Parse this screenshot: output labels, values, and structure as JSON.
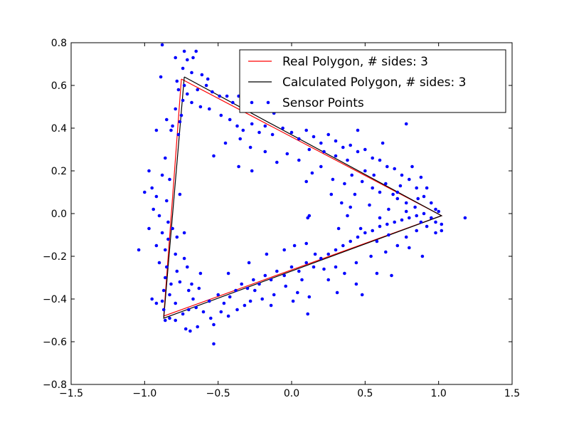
{
  "chart_data": {
    "type": "scatter",
    "title": "",
    "xlabel": "",
    "ylabel": "",
    "xlim": [
      -1.5,
      1.5
    ],
    "ylim": [
      -0.8,
      0.8
    ],
    "x_ticks": [
      -1.5,
      -1.0,
      -0.5,
      0.0,
      0.5,
      1.0,
      1.5
    ],
    "x_tick_labels": [
      "−1.5",
      "−1.0",
      "−0.5",
      "0.0",
      "0.5",
      "1.0",
      "1.5"
    ],
    "y_ticks": [
      -0.8,
      -0.6,
      -0.4,
      -0.2,
      0.0,
      0.2,
      0.4,
      0.6,
      0.8
    ],
    "y_tick_labels": [
      "−0.8",
      "−0.6",
      "−0.4",
      "−0.2",
      "0.0",
      "0.2",
      "0.4",
      "0.6",
      "0.8"
    ],
    "grid": false,
    "legend_position": "top-right",
    "series": [
      {
        "name": "Real Polygon, # sides: 3",
        "kind": "line",
        "color": "#ff0000",
        "points": [
          [
            -0.75,
            0.63
          ],
          [
            1.02,
            -0.01
          ],
          [
            -0.87,
            -0.48
          ],
          [
            -0.75,
            0.63
          ]
        ]
      },
      {
        "name": "Calculated Polygon, # sides: 3",
        "kind": "line",
        "color": "#000000",
        "points": [
          [
            -0.73,
            0.64
          ],
          [
            1.02,
            -0.01
          ],
          [
            -0.87,
            -0.49
          ],
          [
            -0.73,
            0.64
          ]
        ]
      },
      {
        "name": "Sensor Points",
        "kind": "scatter",
        "color": "#0000ff",
        "points": [
          [
            -0.88,
            0.79
          ],
          [
            -0.73,
            0.76
          ],
          [
            -0.65,
            0.76
          ],
          [
            -0.79,
            0.73
          ],
          [
            -0.71,
            0.72
          ],
          [
            -0.67,
            0.73
          ],
          [
            -0.74,
            0.68
          ],
          [
            -0.68,
            0.66
          ],
          [
            -0.61,
            0.65
          ],
          [
            -0.57,
            0.63
          ],
          [
            -0.89,
            0.64
          ],
          [
            -0.78,
            0.62
          ],
          [
            -0.73,
            0.6
          ],
          [
            -0.64,
            0.58
          ],
          [
            -0.58,
            0.6
          ],
          [
            -0.54,
            0.57
          ],
          [
            -0.49,
            0.55
          ],
          [
            -0.44,
            0.55
          ],
          [
            -0.4,
            0.52
          ],
          [
            -0.36,
            0.55
          ],
          [
            -0.31,
            0.5
          ],
          [
            -0.25,
            0.49
          ],
          [
            -0.19,
            0.5
          ],
          [
            -0.12,
            0.47
          ],
          [
            -0.77,
            0.58
          ],
          [
            -0.71,
            0.56
          ],
          [
            -0.74,
            0.53
          ],
          [
            -0.68,
            0.52
          ],
          [
            -0.62,
            0.5
          ],
          [
            -0.79,
            0.49
          ],
          [
            -0.75,
            0.46
          ],
          [
            -0.85,
            0.44
          ],
          [
            -0.81,
            0.41
          ],
          [
            -0.76,
            0.43
          ],
          [
            -0.92,
            0.39
          ],
          [
            -0.82,
            0.39
          ],
          [
            -0.77,
            0.37
          ],
          [
            -0.56,
            0.49
          ],
          [
            -0.48,
            0.46
          ],
          [
            -0.42,
            0.44
          ],
          [
            -0.37,
            0.41
          ],
          [
            -0.33,
            0.39
          ],
          [
            -0.27,
            0.42
          ],
          [
            -0.22,
            0.38
          ],
          [
            -0.18,
            0.41
          ],
          [
            -0.13,
            0.37
          ],
          [
            -0.06,
            0.4
          ],
          [
            0.0,
            0.38
          ],
          [
            0.05,
            0.35
          ],
          [
            0.1,
            0.39
          ],
          [
            0.15,
            0.36
          ],
          [
            0.2,
            0.33
          ],
          [
            0.25,
            0.37
          ],
          [
            0.3,
            0.34
          ],
          [
            0.35,
            0.31
          ],
          [
            0.4,
            0.32
          ],
          [
            0.45,
            0.29
          ],
          [
            0.5,
            0.3
          ],
          [
            0.55,
            0.26
          ],
          [
            0.6,
            0.25
          ],
          [
            0.65,
            0.22
          ],
          [
            0.7,
            0.21
          ],
          [
            0.75,
            0.18
          ],
          [
            0.8,
            0.16
          ],
          [
            0.85,
            0.12
          ],
          [
            0.9,
            0.08
          ],
          [
            0.95,
            0.05
          ],
          [
            0.98,
            0.02
          ],
          [
            0.78,
            0.42
          ],
          [
            0.62,
            0.33
          ],
          [
            0.45,
            0.39
          ],
          [
            0.38,
            0.25
          ],
          [
            0.3,
            0.27
          ],
          [
            0.22,
            0.29
          ],
          [
            0.12,
            0.3
          ],
          [
            0.05,
            0.25
          ],
          [
            -0.03,
            0.28
          ],
          [
            -0.1,
            0.24
          ],
          [
            -0.18,
            0.29
          ],
          [
            -0.28,
            0.31
          ],
          [
            -0.35,
            0.35
          ],
          [
            -0.45,
            0.33
          ],
          [
            -0.53,
            0.27
          ],
          [
            -0.27,
            0.2
          ],
          [
            -0.36,
            0.22
          ],
          [
            0.5,
            0.2
          ],
          [
            0.56,
            0.18
          ],
          [
            0.64,
            0.14
          ],
          [
            0.72,
            0.1
          ],
          [
            0.78,
            0.05
          ],
          [
            0.84,
            0.03
          ],
          [
            0.9,
            0.0
          ],
          [
            0.95,
            -0.02
          ],
          [
            0.98,
            -0.04
          ],
          [
            1.02,
            -0.05
          ],
          [
            1.18,
            -0.02
          ],
          [
            1.0,
            0.01
          ],
          [
            0.92,
            0.12
          ],
          [
            0.88,
            0.17
          ],
          [
            0.82,
            0.22
          ],
          [
            0.86,
            0.07
          ],
          [
            0.74,
            0.13
          ],
          [
            0.69,
            0.09
          ],
          [
            0.6,
            0.1
          ],
          [
            0.55,
            0.12
          ],
          [
            0.48,
            0.15
          ],
          [
            0.41,
            0.18
          ],
          [
            0.36,
            0.14
          ],
          [
            0.43,
            0.09
          ],
          [
            0.28,
            0.16
          ],
          [
            0.2,
            0.22
          ],
          [
            0.14,
            0.19
          ],
          [
            0.1,
            0.15
          ],
          [
            0.34,
            0.05
          ],
          [
            0.38,
            -0.01
          ],
          [
            0.4,
            0.03
          ],
          [
            0.11,
            -0.02
          ],
          [
            -0.97,
            0.2
          ],
          [
            -0.95,
            0.12
          ],
          [
            -0.86,
            0.26
          ],
          [
            -0.88,
            0.18
          ],
          [
            -0.83,
            0.16
          ],
          [
            -0.92,
            0.08
          ],
          [
            -0.85,
            0.06
          ],
          [
            -0.94,
            0.02
          ],
          [
            -0.9,
            -0.01
          ],
          [
            -0.84,
            -0.04
          ],
          [
            -1.0,
            0.1
          ],
          [
            -0.97,
            -0.07
          ],
          [
            -0.88,
            -0.09
          ],
          [
            -0.81,
            -0.07
          ],
          [
            -0.84,
            -0.12
          ],
          [
            -0.78,
            -0.11
          ],
          [
            -0.76,
            0.09
          ],
          [
            -0.73,
            -0.09
          ],
          [
            -0.86,
            -0.17
          ],
          [
            -0.79,
            -0.19
          ],
          [
            -0.73,
            -0.21
          ],
          [
            -0.92,
            -0.15
          ],
          [
            -1.04,
            -0.17
          ],
          [
            -0.9,
            -0.23
          ],
          [
            -0.85,
            -0.25
          ],
          [
            -0.78,
            -0.27
          ],
          [
            -0.71,
            -0.25
          ],
          [
            -0.86,
            -0.3
          ],
          [
            -0.82,
            -0.33
          ],
          [
            -0.76,
            -0.32
          ],
          [
            -0.68,
            -0.33
          ],
          [
            -0.62,
            -0.28
          ],
          [
            -0.87,
            -0.36
          ],
          [
            -0.83,
            -0.38
          ],
          [
            -0.88,
            -0.41
          ],
          [
            -0.79,
            -0.42
          ],
          [
            -0.7,
            -0.36
          ],
          [
            -0.67,
            -0.4
          ],
          [
            -0.63,
            -0.35
          ],
          [
            -0.95,
            -0.4
          ],
          [
            -0.92,
            -0.42
          ],
          [
            -0.87,
            -0.45
          ],
          [
            -0.86,
            -0.5
          ],
          [
            -0.83,
            -0.49
          ],
          [
            -0.79,
            -0.5
          ],
          [
            -0.74,
            -0.47
          ],
          [
            -0.7,
            -0.45
          ],
          [
            -0.65,
            -0.44
          ],
          [
            -0.6,
            -0.46
          ],
          [
            -0.56,
            -0.41
          ],
          [
            -0.5,
            -0.38
          ],
          [
            -0.46,
            -0.42
          ],
          [
            -0.42,
            -0.39
          ],
          [
            -0.38,
            -0.36
          ],
          [
            -0.34,
            -0.33
          ],
          [
            -0.3,
            -0.35
          ],
          [
            -0.26,
            -0.31
          ],
          [
            -0.22,
            -0.33
          ],
          [
            -0.18,
            -0.29
          ],
          [
            -0.14,
            -0.31
          ],
          [
            -0.1,
            -0.27
          ],
          [
            -0.05,
            -0.29
          ],
          [
            0.0,
            -0.25
          ],
          [
            0.05,
            -0.27
          ],
          [
            0.1,
            -0.23
          ],
          [
            0.15,
            -0.25
          ],
          [
            0.2,
            -0.21
          ],
          [
            0.25,
            -0.19
          ],
          [
            0.3,
            -0.17
          ],
          [
            0.35,
            -0.15
          ],
          [
            0.4,
            -0.13
          ],
          [
            0.45,
            -0.11
          ],
          [
            0.5,
            -0.09
          ],
          [
            0.55,
            -0.08
          ],
          [
            0.6,
            -0.06
          ],
          [
            0.65,
            -0.05
          ],
          [
            0.7,
            -0.04
          ],
          [
            0.75,
            -0.03
          ],
          [
            0.8,
            -0.02
          ],
          [
            0.85,
            -0.01
          ],
          [
            -0.72,
            -0.54
          ],
          [
            -0.69,
            -0.55
          ],
          [
            -0.64,
            -0.53
          ],
          [
            -0.55,
            -0.49
          ],
          [
            -0.53,
            -0.52
          ],
          [
            -0.48,
            -0.46
          ],
          [
            -0.43,
            -0.48
          ],
          [
            -0.37,
            -0.45
          ],
          [
            -0.32,
            -0.43
          ],
          [
            -0.28,
            -0.41
          ],
          [
            -0.53,
            -0.61
          ],
          [
            -0.43,
            -0.28
          ],
          [
            -0.29,
            -0.23
          ],
          [
            -0.17,
            -0.19
          ],
          [
            -0.05,
            -0.17
          ],
          [
            0.02,
            -0.15
          ],
          [
            0.1,
            -0.14
          ],
          [
            0.16,
            -0.19
          ],
          [
            0.22,
            -0.26
          ],
          [
            0.25,
            -0.31
          ],
          [
            0.3,
            -0.25
          ],
          [
            0.36,
            -0.28
          ],
          [
            0.44,
            -0.23
          ],
          [
            0.54,
            -0.2
          ],
          [
            0.58,
            -0.13
          ],
          [
            0.66,
            -0.1
          ],
          [
            0.72,
            -0.15
          ],
          [
            0.78,
            -0.11
          ],
          [
            0.85,
            -0.08
          ],
          [
            0.92,
            -0.06
          ],
          [
            0.98,
            -0.09
          ],
          [
            0.89,
            -0.2
          ],
          [
            0.8,
            -0.16
          ],
          [
            0.68,
            -0.29
          ],
          [
            0.48,
            -0.38
          ],
          [
            0.11,
            -0.47
          ],
          [
            0.12,
            -0.39
          ],
          [
            0.04,
            -0.37
          ],
          [
            -0.04,
            -0.34
          ],
          [
            -0.12,
            -0.38
          ],
          [
            -0.2,
            -0.4
          ],
          [
            -0.25,
            -0.36
          ],
          [
            0.07,
            -0.31
          ],
          [
            0.01,
            -0.41
          ],
          [
            -0.14,
            -0.43
          ],
          [
            0.31,
            -0.37
          ],
          [
            0.44,
            -0.33
          ],
          [
            0.58,
            -0.28
          ],
          [
            0.64,
            -0.18
          ],
          [
            0.12,
            -0.01
          ],
          [
            0.32,
            -0.07
          ],
          [
            0.47,
            -0.07
          ],
          [
            0.6,
            -0.02
          ],
          [
            0.78,
            0.01
          ],
          [
            0.88,
            -0.04
          ],
          [
            1.02,
            -0.08
          ],
          [
            0.72,
            0.07
          ],
          [
            0.66,
            0.02
          ],
          [
            0.53,
            0.04
          ],
          [
            0.27,
            0.09
          ]
        ]
      }
    ]
  }
}
